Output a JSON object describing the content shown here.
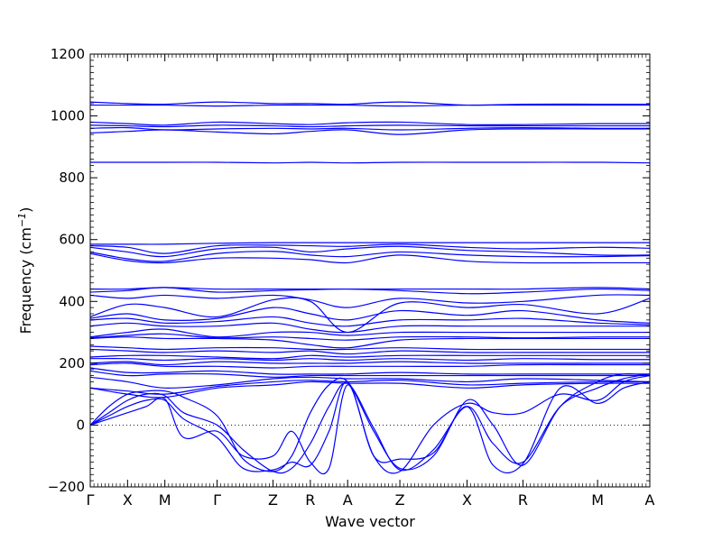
{
  "chart_data": {
    "type": "line",
    "xlabel": "Wave vector",
    "ylabel": "Frequency (cm",
    "ylabel_sup": "−1",
    "ylabel_close": ")",
    "ylim": [
      -200,
      1200
    ],
    "yticks": [
      -200,
      0,
      200,
      400,
      600,
      800,
      1000,
      1200
    ],
    "ytick_labels": [
      "−200",
      "0",
      "200",
      "400",
      "600",
      "800",
      "1000",
      "1200"
    ],
    "x_range": [
      0,
      15
    ],
    "high_symmetry_points": [
      {
        "label": "Γ",
        "x": 0
      },
      {
        "label": "X",
        "x": 1
      },
      {
        "label": "M",
        "x": 2
      },
      {
        "label": "Γ",
        "x": 3.4
      },
      {
        "label": "Z",
        "x": 4.9
      },
      {
        "label": "R",
        "x": 5.9
      },
      {
        "label": "A",
        "x": 6.9
      },
      {
        "label": "Z",
        "x": 8.3
      },
      {
        "label": "X",
        "x": 10.1
      },
      {
        "label": "R",
        "x": 11.6
      },
      {
        "label": "M",
        "x": 13.6
      },
      {
        "label": "A",
        "x": 15
      }
    ],
    "zero_line": 0,
    "line_color": "#0000ff",
    "bands": [
      {
        "x": [
          0,
          1,
          2,
          3.4,
          4.9,
          5.9,
          6.9,
          8.3,
          10.1,
          11.6,
          13.6,
          15
        ],
        "y": [
          1045,
          1040,
          1038,
          1045,
          1040,
          1040,
          1038,
          1045,
          1035,
          1038,
          1038,
          1038
        ]
      },
      {
        "x": [
          0,
          1,
          2,
          3.4,
          4.9,
          5.9,
          6.9,
          8.3,
          10.1,
          11.6,
          13.6,
          15
        ],
        "y": [
          1035,
          1035,
          1035,
          1032,
          1035,
          1035,
          1035,
          1032,
          1035,
          1035,
          1035,
          1035
        ]
      },
      {
        "x": [
          0,
          1,
          2,
          3.4,
          4.9,
          5.9,
          6.9,
          8.3,
          10.1,
          11.6,
          13.6,
          15
        ],
        "y": [
          980,
          975,
          970,
          980,
          975,
          972,
          978,
          980,
          972,
          972,
          975,
          975
        ]
      },
      {
        "x": [
          0,
          1,
          2,
          3.4,
          4.9,
          5.9,
          6.9,
          8.3,
          10.1,
          11.6,
          13.6,
          15
        ],
        "y": [
          970,
          968,
          965,
          970,
          968,
          965,
          968,
          970,
          968,
          968,
          968,
          968
        ]
      },
      {
        "x": [
          0,
          1,
          2,
          3.4,
          4.9,
          5.9,
          6.9,
          8.3,
          10.1,
          11.6,
          13.6,
          15
        ],
        "y": [
          960,
          962,
          955,
          958,
          960,
          958,
          960,
          955,
          960,
          962,
          960,
          960
        ]
      },
      {
        "x": [
          0,
          1,
          2,
          3.4,
          4.9,
          5.9,
          6.9,
          8.3,
          10.1,
          11.6,
          13.6,
          15
        ],
        "y": [
          945,
          950,
          955,
          948,
          942,
          950,
          955,
          940,
          955,
          958,
          958,
          958
        ]
      },
      {
        "x": [
          0,
          1,
          2,
          3.4,
          4.9,
          5.9,
          6.9,
          8.3,
          10.1,
          11.6,
          13.6,
          15
        ],
        "y": [
          850,
          850,
          850,
          850,
          848,
          850,
          848,
          850,
          850,
          850,
          850,
          848
        ]
      },
      {
        "x": [
          0,
          1,
          2,
          3.4,
          4.9,
          5.9,
          6.9,
          8.3,
          10.1,
          11.6,
          13.6,
          15
        ],
        "y": [
          585,
          585,
          585,
          588,
          590,
          590,
          590,
          590,
          590,
          590,
          590,
          590
        ]
      },
      {
        "x": [
          0,
          1,
          2,
          3.4,
          4.9,
          5.9,
          6.9,
          8.3,
          10.1,
          11.6,
          13.6,
          15
        ],
        "y": [
          580,
          575,
          555,
          580,
          582,
          580,
          578,
          585,
          575,
          570,
          575,
          572
        ]
      },
      {
        "x": [
          0,
          1,
          2,
          3.4,
          4.9,
          5.9,
          6.9,
          8.3,
          10.1,
          11.6,
          13.6,
          15
        ],
        "y": [
          575,
          560,
          545,
          570,
          575,
          560,
          570,
          578,
          565,
          560,
          550,
          550
        ]
      },
      {
        "x": [
          0,
          1,
          2,
          3.4,
          4.9,
          5.9,
          6.9,
          8.3,
          10.1,
          11.6,
          13.6,
          15
        ],
        "y": [
          560,
          538,
          530,
          555,
          562,
          550,
          545,
          560,
          550,
          545,
          545,
          548
        ]
      },
      {
        "x": [
          0,
          1,
          2,
          3.4,
          4.9,
          5.9,
          6.9,
          8.3,
          10.1,
          11.6,
          13.6,
          15
        ],
        "y": [
          555,
          532,
          525,
          540,
          540,
          535,
          525,
          550,
          530,
          525,
          525,
          525
        ]
      },
      {
        "x": [
          0,
          1,
          2,
          3.4,
          4.9,
          5.9,
          6.9,
          8.3,
          10.1,
          11.6,
          13.6,
          15
        ],
        "y": [
          440,
          440,
          445,
          440,
          440,
          440,
          440,
          440,
          440,
          440,
          445,
          440
        ]
      },
      {
        "x": [
          0,
          1,
          2,
          3.4,
          4.9,
          5.9,
          6.9,
          8.3,
          10.1,
          11.6,
          13.6,
          15
        ],
        "y": [
          430,
          435,
          445,
          430,
          435,
          438,
          440,
          435,
          425,
          430,
          440,
          435
        ]
      },
      {
        "x": [
          0,
          1,
          2,
          3.4,
          4.9,
          5.9,
          6.9,
          8.3,
          10.1,
          11.6,
          13.6,
          15
        ],
        "y": [
          420,
          410,
          420,
          410,
          420,
          405,
          380,
          410,
          395,
          400,
          420,
          420
        ]
      },
      {
        "x": [
          0,
          1,
          2,
          3.4,
          4.9,
          5.9,
          6.9,
          8.3,
          10.1,
          11.6,
          13.6,
          15
        ],
        "y": [
          350,
          390,
          380,
          350,
          405,
          400,
          300,
          395,
          380,
          390,
          360,
          410
        ]
      },
      {
        "x": [
          0,
          1,
          2,
          3.4,
          4.9,
          5.9,
          6.9,
          8.3,
          10.1,
          11.6,
          13.6,
          15
        ],
        "y": [
          345,
          360,
          340,
          345,
          380,
          360,
          340,
          370,
          355,
          370,
          340,
          330
        ]
      },
      {
        "x": [
          0,
          1,
          2,
          3.4,
          4.9,
          5.9,
          6.9,
          8.3,
          10.1,
          11.6,
          13.6,
          15
        ],
        "y": [
          340,
          345,
          330,
          335,
          350,
          330,
          320,
          340,
          340,
          345,
          330,
          325
        ]
      },
      {
        "x": [
          0,
          1,
          2,
          3.4,
          4.9,
          5.9,
          6.9,
          8.3,
          10.1,
          11.6,
          13.6,
          15
        ],
        "y": [
          320,
          330,
          320,
          320,
          330,
          310,
          300,
          320,
          320,
          320,
          320,
          320
        ]
      },
      {
        "x": [
          0,
          1,
          2,
          3.4,
          4.9,
          5.9,
          6.9,
          8.3,
          10.1,
          11.6,
          13.6,
          15
        ],
        "y": [
          285,
          300,
          310,
          285,
          300,
          300,
          290,
          300,
          300,
          300,
          300,
          300
        ]
      },
      {
        "x": [
          0,
          1,
          2,
          3.4,
          4.9,
          5.9,
          6.9,
          8.3,
          10.1,
          11.6,
          13.6,
          15
        ],
        "y": [
          282,
          290,
          295,
          282,
          285,
          280,
          275,
          285,
          285,
          282,
          285,
          285
        ]
      },
      {
        "x": [
          0,
          1,
          2,
          3.4,
          4.9,
          5.9,
          6.9,
          8.3,
          10.1,
          11.6,
          13.6,
          15
        ],
        "y": [
          280,
          285,
          280,
          280,
          275,
          260,
          250,
          275,
          280,
          280,
          280,
          280
        ]
      },
      {
        "x": [
          0,
          1,
          2,
          3.4,
          4.9,
          5.9,
          6.9,
          8.3,
          10.1,
          11.6,
          13.6,
          15
        ],
        "y": [
          255,
          250,
          245,
          250,
          250,
          245,
          245,
          250,
          245,
          245,
          245,
          245
        ]
      },
      {
        "x": [
          0,
          1,
          2,
          3.4,
          4.9,
          5.9,
          6.9,
          8.3,
          10.1,
          11.6,
          13.6,
          15
        ],
        "y": [
          245,
          240,
          235,
          240,
          235,
          240,
          230,
          240,
          235,
          235,
          235,
          235
        ]
      },
      {
        "x": [
          0,
          1,
          2,
          3.4,
          4.9,
          5.9,
          6.9,
          8.3,
          10.1,
          11.6,
          13.6,
          15
        ],
        "y": [
          220,
          225,
          225,
          220,
          215,
          225,
          220,
          225,
          225,
          225,
          225,
          225
        ]
      },
      {
        "x": [
          0,
          1,
          2,
          3.4,
          4.9,
          5.9,
          6.9,
          8.3,
          10.1,
          11.6,
          13.6,
          15
        ],
        "y": [
          215,
          215,
          210,
          215,
          210,
          215,
          210,
          215,
          210,
          215,
          212,
          212
        ]
      },
      {
        "x": [
          0,
          1,
          2,
          3.4,
          4.9,
          5.9,
          6.9,
          8.3,
          10.1,
          11.6,
          13.6,
          15
        ],
        "y": [
          200,
          205,
          195,
          205,
          200,
          200,
          200,
          205,
          200,
          200,
          200,
          200
        ]
      },
      {
        "x": [
          0,
          1,
          2,
          3.4,
          4.9,
          5.9,
          6.9,
          8.3,
          10.1,
          11.6,
          13.6,
          15
        ],
        "y": [
          195,
          200,
          190,
          190,
          185,
          190,
          190,
          190,
          190,
          195,
          195,
          195
        ]
      },
      {
        "x": [
          0,
          1,
          2,
          3.4,
          4.9,
          5.9,
          6.9,
          8.3,
          10.1,
          11.6,
          13.6,
          15
        ],
        "y": [
          185,
          170,
          170,
          175,
          165,
          165,
          165,
          170,
          165,
          165,
          165,
          165
        ]
      },
      {
        "x": [
          0,
          1,
          2,
          3.4,
          4.9,
          5.9,
          6.9,
          8.3,
          10.1,
          11.6,
          13.6,
          15
        ],
        "y": [
          175,
          160,
          165,
          165,
          155,
          160,
          160,
          160,
          160,
          160,
          160,
          160
        ]
      },
      {
        "x": [
          0,
          1,
          2,
          3.4,
          4.9,
          5.9,
          6.9,
          8.3,
          10.1,
          11.6,
          13.6,
          15
        ],
        "y": [
          155,
          140,
          120,
          130,
          150,
          155,
          150,
          150,
          140,
          150,
          145,
          140
        ]
      },
      {
        "x": [
          0,
          1,
          2,
          3.4,
          4.9,
          5.9,
          6.9,
          8.3,
          10.1,
          11.6,
          13.6,
          15
        ],
        "y": [
          120,
          110,
          100,
          125,
          140,
          145,
          140,
          145,
          130,
          135,
          140,
          140
        ]
      },
      {
        "x": [
          0,
          1,
          2,
          3.4,
          4.9,
          5.9,
          6.9,
          8.3,
          10.1,
          11.6,
          13.6,
          15
        ],
        "y": [
          120,
          100,
          90,
          120,
          130,
          140,
          135,
          135,
          120,
          130,
          135,
          135
        ]
      },
      {
        "x": [
          0,
          0.5,
          1,
          1.5,
          2,
          2.5,
          3.4,
          4.1,
          4.9,
          5.4,
          5.9,
          6.4,
          6.9,
          7.6,
          8.3,
          9.2,
          10.1,
          10.8,
          11.6,
          12.6,
          13.6,
          14.3,
          15
        ],
        "y": [
          0,
          60,
          100,
          110,
          110,
          90,
          30,
          -110,
          -150,
          -100,
          40,
          130,
          140,
          -20,
          -140,
          -100,
          80,
          0,
          -130,
          60,
          140,
          165,
          160
        ]
      },
      {
        "x": [
          0,
          0.5,
          1,
          1.5,
          2,
          2.5,
          3.4,
          4.1,
          4.9,
          5.4,
          5.9,
          6.4,
          6.9,
          7.6,
          8.3,
          9.2,
          10.1,
          10.8,
          11.6,
          12.6,
          13.6,
          14.3,
          15
        ],
        "y": [
          0,
          40,
          80,
          100,
          95,
          40,
          0,
          -80,
          -150,
          -140,
          -60,
          60,
          135,
          -10,
          -145,
          -80,
          60,
          -60,
          -120,
          60,
          120,
          150,
          165
        ]
      },
      {
        "x": [
          0,
          0.5,
          1,
          1.5,
          2,
          2.5,
          3.4,
          4.1,
          4.9,
          5.4,
          5.9,
          6.4,
          6.9,
          7.6,
          8.3,
          9.2,
          10.1,
          10.8,
          11.6,
          12.6,
          13.6,
          14.3,
          15
        ],
        "y": [
          0,
          30,
          60,
          80,
          80,
          20,
          -40,
          -140,
          -145,
          -120,
          -130,
          -20,
          140,
          -100,
          -150,
          0,
          70,
          40,
          40,
          100,
          80,
          140,
          160
        ]
      },
      {
        "x": [
          0,
          0.5,
          1,
          1.5,
          2,
          2.5,
          3.4,
          4.1,
          4.9,
          5.4,
          5.9,
          6.4,
          6.9,
          7.6,
          8.3,
          9.2,
          10.1,
          10.8,
          11.6,
          12.6,
          13.6,
          14.3,
          15
        ],
        "y": [
          0,
          20,
          40,
          60,
          85,
          -40,
          -20,
          -100,
          -100,
          -20,
          -120,
          -140,
          130,
          -100,
          -110,
          -90,
          60,
          -130,
          -125,
          120,
          70,
          120,
          140
        ]
      }
    ]
  }
}
